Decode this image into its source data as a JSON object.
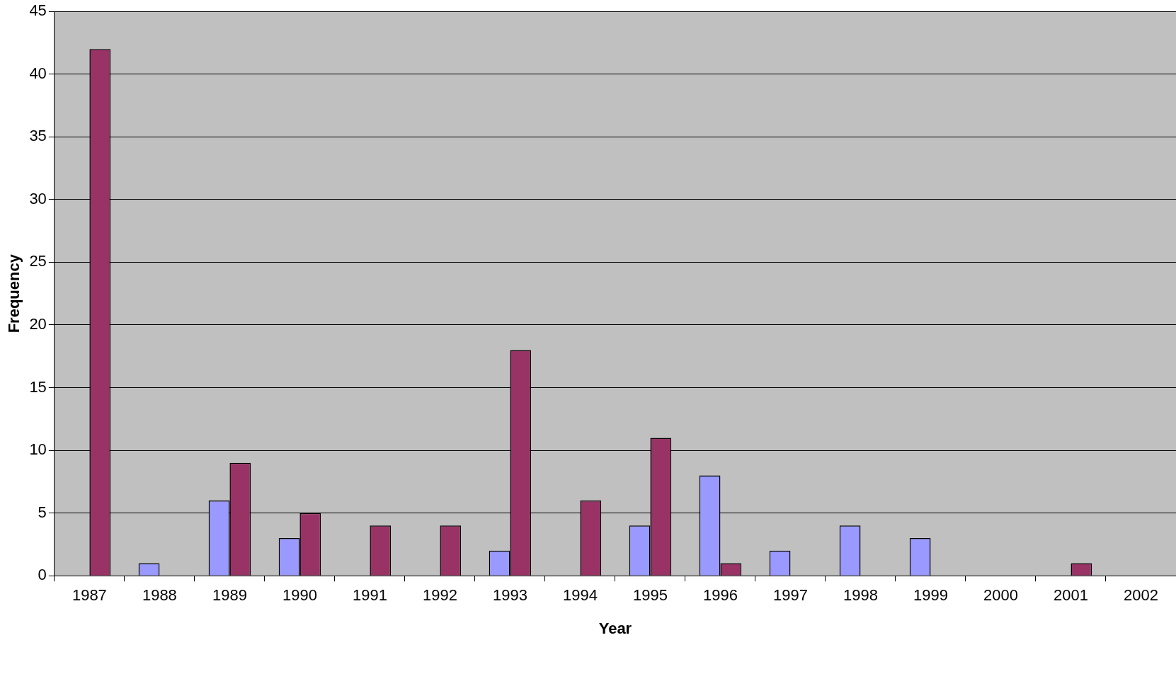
{
  "chart_data": {
    "type": "bar",
    "xlabel": "Year",
    "ylabel": "Frequency",
    "categories": [
      "1987",
      "1988",
      "1989",
      "1990",
      "1991",
      "1992",
      "1993",
      "1994",
      "1995",
      "1996",
      "1997",
      "1998",
      "1999",
      "2000",
      "2001",
      "2002"
    ],
    "series": [
      {
        "color": "#9999ff",
        "values": [
          0,
          1,
          6,
          3,
          0,
          0,
          2,
          0,
          4,
          8,
          2,
          4,
          3,
          0,
          0,
          0
        ]
      },
      {
        "color": "#993366",
        "values": [
          42,
          0,
          9,
          5,
          4,
          4,
          18,
          6,
          11,
          1,
          0,
          0,
          0,
          0,
          1,
          0
        ]
      }
    ],
    "ylim": [
      0,
      45
    ],
    "yticks": [
      0,
      5,
      10,
      15,
      20,
      25,
      30,
      35,
      40,
      45
    ],
    "grid": "y"
  }
}
